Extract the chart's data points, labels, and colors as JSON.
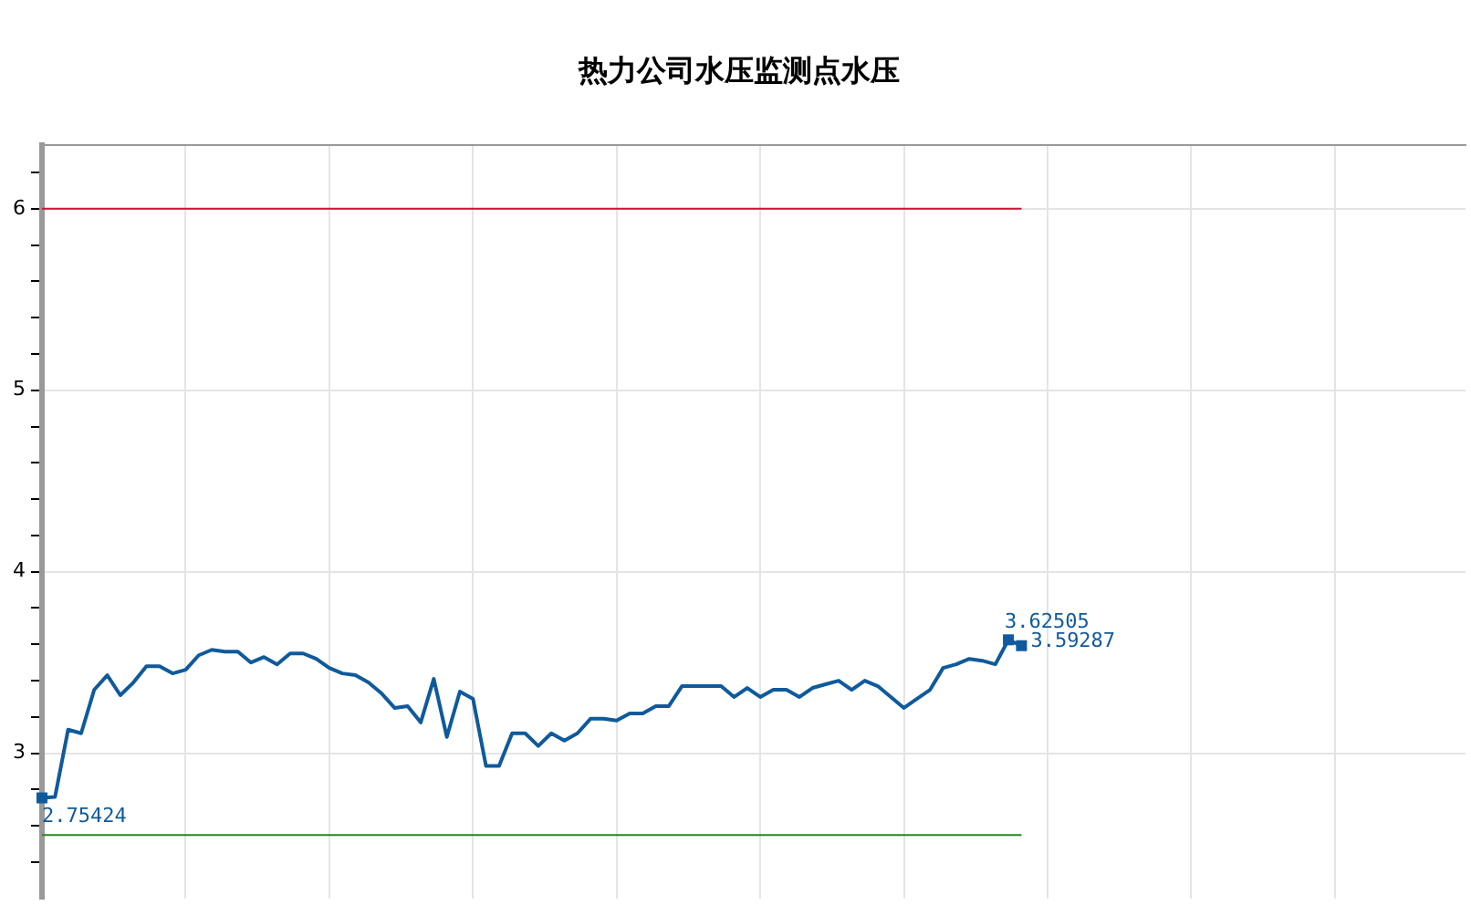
{
  "chart_data": {
    "type": "line",
    "title": "热力公司水压监测点水压",
    "categories": [
      null,
      null,
      null,
      null,
      null,
      null,
      null,
      null,
      null,
      null,
      null,
      null,
      null,
      null,
      null,
      null,
      null,
      null,
      null,
      null,
      null,
      null,
      null,
      null,
      null,
      null,
      null,
      null,
      null,
      null,
      null,
      null,
      null,
      null,
      null,
      null,
      null,
      null,
      null,
      null,
      null,
      null,
      null,
      null,
      null,
      null,
      null,
      null,
      null,
      null,
      null,
      null,
      null,
      null,
      null,
      null,
      null,
      null,
      null,
      null,
      null,
      null,
      null,
      null,
      null,
      null,
      null,
      null,
      null,
      null,
      null,
      null,
      null,
      null,
      null,
      null,
      null,
      null,
      null,
      null,
      null,
      null,
      null,
      null,
      null,
      null,
      null,
      null,
      null,
      null,
      null,
      null,
      null,
      null,
      null,
      null,
      null,
      null,
      null,
      null,
      null,
      null,
      null,
      null,
      null,
      null,
      null,
      null,
      null,
      null
    ],
    "series": [
      {
        "color": "#0f5a9c",
        "values": [
          2.75424,
          2.76,
          3.13,
          3.11,
          3.35,
          3.43,
          3.32,
          3.39,
          3.48,
          3.48,
          3.44,
          3.46,
          3.54,
          3.57,
          3.56,
          3.56,
          3.5,
          3.53,
          3.49,
          3.55,
          3.55,
          3.52,
          3.47,
          3.44,
          3.43,
          3.39,
          3.33,
          3.25,
          3.26,
          3.17,
          3.41,
          3.09,
          3.34,
          3.3,
          2.93,
          2.93,
          3.11,
          3.11,
          3.04,
          3.11,
          3.07,
          3.11,
          3.19,
          3.19,
          3.18,
          3.22,
          3.22,
          3.26,
          3.26,
          3.37,
          3.37,
          3.37,
          3.37,
          3.31,
          3.36,
          3.31,
          3.35,
          3.35,
          3.31,
          3.36,
          3.38,
          3.4,
          3.35,
          3.4,
          3.37,
          3.31,
          3.25,
          3.3,
          3.35,
          3.47,
          3.49,
          3.52,
          3.51,
          3.49,
          3.62505,
          3.59287,
          null,
          null,
          null,
          null,
          null,
          null,
          null,
          null,
          null,
          null,
          null,
          null,
          null,
          null,
          null,
          null,
          null,
          null,
          null,
          null,
          null,
          null,
          null,
          null,
          null,
          null,
          null,
          null,
          null,
          null,
          null,
          null,
          null,
          null
        ],
        "value_labels": [
          "2.75424",
          null,
          null,
          null,
          null,
          null,
          null,
          null,
          null,
          null,
          null,
          null,
          null,
          null,
          null,
          null,
          null,
          null,
          null,
          null,
          null,
          null,
          null,
          null,
          null,
          null,
          null,
          null,
          null,
          null,
          null,
          null,
          null,
          null,
          null,
          null,
          null,
          null,
          null,
          null,
          null,
          null,
          null,
          null,
          null,
          null,
          null,
          null,
          null,
          null,
          null,
          null,
          null,
          null,
          null,
          null,
          null,
          null,
          null,
          null,
          null,
          null,
          null,
          null,
          null,
          null,
          null,
          null,
          null,
          null,
          null,
          null,
          null,
          null,
          "3.62505",
          "3.59287",
          null,
          null,
          null,
          null,
          null,
          null,
          null,
          null,
          null,
          null,
          null,
          null,
          null,
          null,
          null,
          null,
          null,
          null,
          null,
          null,
          null,
          null,
          null,
          null,
          null,
          null,
          null,
          null,
          null,
          null,
          null,
          null,
          null,
          null
        ]
      }
    ],
    "ylim": [
      2.2,
      6.35
    ],
    "yticks": [
      {
        "value": 2.4,
        "label": null
      },
      {
        "value": 2.6,
        "label": null
      },
      {
        "value": 2.8,
        "label": null
      },
      3,
      {
        "value": 3.2,
        "label": null
      },
      {
        "value": 3.4,
        "label": null
      },
      {
        "value": 3.6,
        "label": null
      },
      {
        "value": 3.8,
        "label": null
      },
      4,
      {
        "value": 4.2,
        "label": null
      },
      {
        "value": 4.4,
        "label": null
      },
      {
        "value": 4.6,
        "label": null
      },
      {
        "value": 4.8,
        "label": null
      },
      5,
      {
        "value": 5.2,
        "label": null
      },
      {
        "value": 5.4,
        "label": null
      },
      {
        "value": 5.6,
        "label": null
      },
      {
        "value": 5.8,
        "label": null
      },
      6,
      {
        "value": 6.2,
        "label": null
      }
    ],
    "ref_lines": [
      {
        "axis": "y",
        "value": 6,
        "color": "#cc1133"
      },
      {
        "axis": "y",
        "value": 2.55,
        "color": "#228822"
      }
    ],
    "grid": true,
    "legend": false,
    "line_style": "solid"
  }
}
